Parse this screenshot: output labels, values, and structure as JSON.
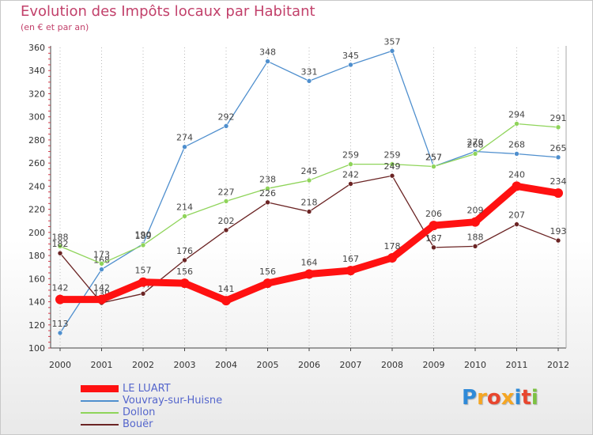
{
  "header": {
    "title": "Evolution des Impôts locaux par Habitant",
    "subtitle": "(en € et par an)"
  },
  "logo": {
    "letters": [
      "P",
      "r",
      "o",
      "x",
      "i",
      "t",
      "i"
    ],
    "colors": [
      "#2f8ad8",
      "#f5a623",
      "#e8462e",
      "#f5a623",
      "#2f8ad8",
      "#e8462e",
      "#7cc142"
    ]
  },
  "chart_data": {
    "type": "line",
    "title": "Evolution des Impôts locaux par Habitant",
    "subtitle": "(en € et par an)",
    "x": [
      2000,
      2001,
      2002,
      2003,
      2004,
      2005,
      2006,
      2007,
      2008,
      2009,
      2010,
      2011,
      2012
    ],
    "ylim": [
      100,
      360
    ],
    "yticks": [
      100,
      120,
      140,
      160,
      180,
      200,
      220,
      240,
      260,
      280,
      300,
      320,
      340,
      360
    ],
    "grid": "vertical-dotted",
    "legend_position": "bottom-left",
    "series": [
      {
        "name": "Vouvray-sur-Huisne",
        "color": "#4f8fce",
        "values": [
          113,
          168,
          190,
          274,
          292,
          348,
          331,
          345,
          357,
          257,
          270,
          268,
          265
        ]
      },
      {
        "name": "Dollon",
        "color": "#8fd45a",
        "values": [
          188,
          173,
          189,
          214,
          227,
          238,
          245,
          259,
          259,
          257,
          268,
          294,
          291
        ]
      },
      {
        "name": "Bouër",
        "color": "#6b2424",
        "values": [
          182,
          139,
          147,
          176,
          202,
          226,
          218,
          242,
          249,
          187,
          188,
          207,
          193
        ]
      },
      {
        "name": "LE LUART",
        "color": "#ff1111",
        "values": [
          142,
          142,
          157,
          156,
          141,
          156,
          164,
          167,
          178,
          206,
          209,
          240,
          234
        ]
      }
    ],
    "legend_order": [
      "LE LUART",
      "Vouvray-sur-Huisne",
      "Dollon",
      "Bouër"
    ]
  }
}
